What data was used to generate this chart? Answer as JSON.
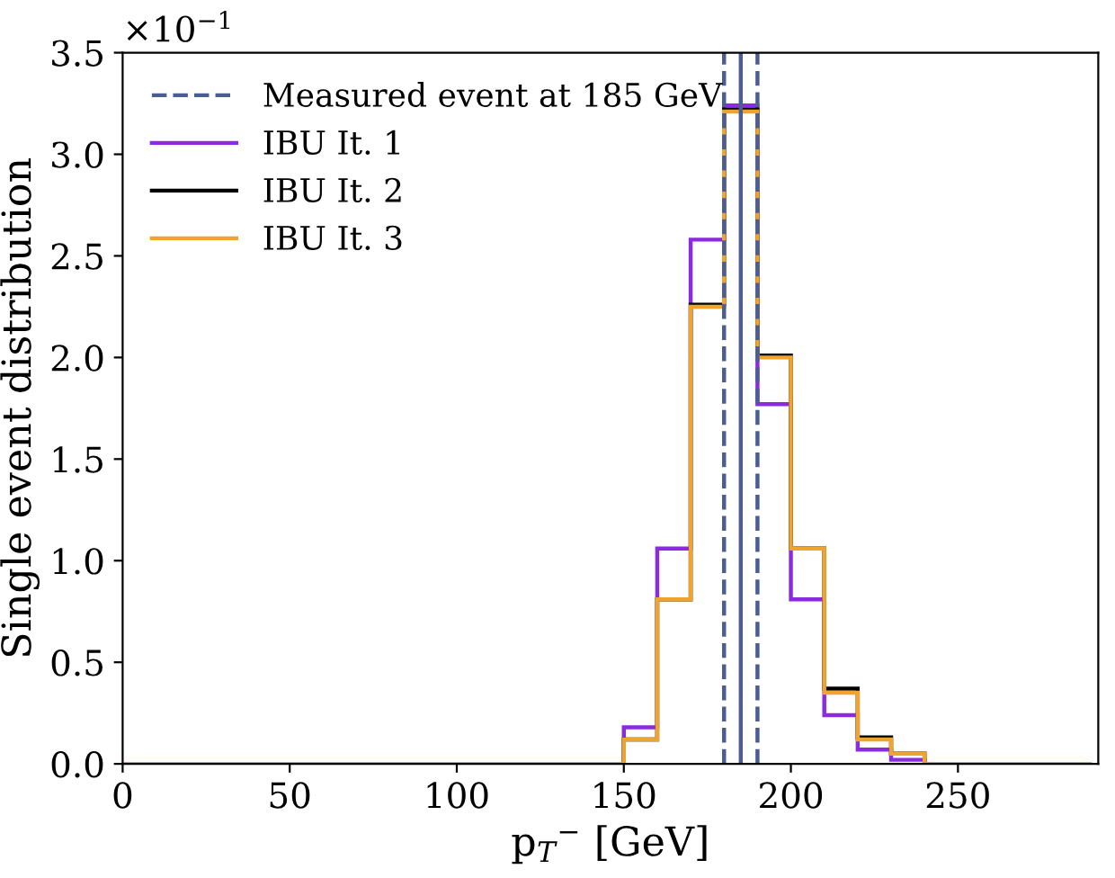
{
  "chart_data": {
    "type": "histogram",
    "xlabel": "p$_{T}$$^{−}$ [GeV]",
    "ylabel": "Single event distribution",
    "bins": [
      0,
      10,
      20,
      30,
      40,
      50,
      60,
      70,
      80,
      90,
      100,
      110,
      120,
      130,
      140,
      150,
      160,
      170,
      180,
      190,
      200,
      210,
      220,
      230,
      240,
      250,
      260,
      270,
      280,
      290
    ],
    "series": [
      {
        "name": "IBU It. 1",
        "color": "#8a2be2",
        "values": [
          0,
          0,
          0,
          0,
          0,
          0,
          0,
          0,
          0,
          0,
          0,
          0,
          0,
          0,
          0,
          0.18,
          1.06,
          2.58,
          3.24,
          1.77,
          0.81,
          0.24,
          0.07,
          0.02,
          0,
          0,
          0,
          0,
          0
        ]
      },
      {
        "name": "IBU It. 2",
        "color": "#000000",
        "values": [
          0,
          0,
          0,
          0,
          0,
          0,
          0,
          0,
          0,
          0,
          0,
          0,
          0,
          0,
          0,
          0.12,
          0.81,
          2.26,
          3.22,
          2.01,
          1.06,
          0.37,
          0.13,
          0.05,
          0,
          0,
          0,
          0,
          0
        ]
      },
      {
        "name": "IBU It. 3",
        "color": "#f0a430",
        "values": [
          0,
          0,
          0,
          0,
          0,
          0,
          0,
          0,
          0,
          0,
          0,
          0,
          0,
          0,
          0,
          0.12,
          0.81,
          2.25,
          3.21,
          2.0,
          1.06,
          0.35,
          0.12,
          0.05,
          0,
          0,
          0,
          0,
          0
        ]
      }
    ],
    "ref_lines": [
      {
        "axis": "x",
        "value": 180,
        "label": "Measured event at 185 GeV",
        "color": "#4a5d94",
        "line_style": "dashed"
      },
      {
        "axis": "x",
        "value": 185,
        "color": "#4a5d94",
        "line_style": "solid"
      },
      {
        "axis": "x",
        "value": 190,
        "color": "#4a5d94",
        "line_style": "dashed"
      }
    ],
    "annotations": [
      "×10$^{−1}$"
    ],
    "xlim": [
      0,
      292
    ],
    "xticks": [
      0,
      50,
      100,
      150,
      200,
      250
    ],
    "ylim": [
      0,
      3.5
    ],
    "yticks": [
      {
        "value": 0,
        "label": "0.0"
      },
      0.5,
      {
        "value": 1,
        "label": "1.0"
      },
      1.5,
      {
        "value": 2,
        "label": "2.0"
      },
      2.5,
      {
        "value": 3,
        "label": "3.0"
      },
      3.5
    ],
    "grid": false,
    "legend": "top left"
  }
}
